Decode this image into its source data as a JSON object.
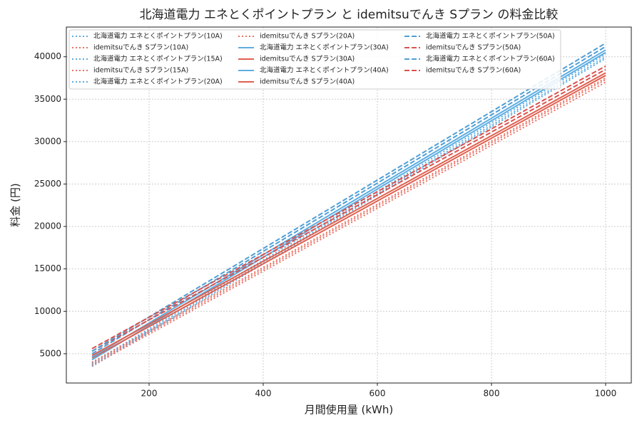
{
  "chart_data": {
    "type": "line",
    "title": "北海道電力 エネとくポイントプラン と idemitsuでんき Sプラン の料金比較",
    "x_label": "月間使用量 (kWh)",
    "y_label": "料金 (円)",
    "x": [
      100,
      1000
    ],
    "xlim": [
      55,
      1045
    ],
    "ylim": [
      1550,
      43500
    ],
    "xticks": [
      200,
      400,
      600,
      800,
      1000
    ],
    "yticks": [
      5000,
      10000,
      15000,
      20000,
      25000,
      30000,
      35000,
      40000
    ],
    "grid": true,
    "legend": "upper left",
    "series": [
      {
        "name": "北海道電力 エネとくポイントプラン(10A)",
        "color": "#5dade2",
        "dash": "dotted",
        "values": [
          3500,
          39800
        ]
      },
      {
        "name": "idemitsuでんき Sプラン(10A)",
        "color": "#ec7063",
        "dash": "dotted",
        "values": [
          3600,
          37000
        ]
      },
      {
        "name": "北海道電力 エネとくポイントプラン(15A)",
        "color": "#5dade2",
        "dash": "dotted",
        "values": [
          3700,
          40000
        ]
      },
      {
        "name": "idemitsuでんき Sプラン(15A)",
        "color": "#ec7063",
        "dash": "dotted",
        "values": [
          3800,
          37300
        ]
      },
      {
        "name": "北海道電力 エネとくポイントプラン(20A)",
        "color": "#5dade2",
        "dash": "dotted",
        "values": [
          3900,
          40300
        ]
      },
      {
        "name": "idemitsuでんき Sプラン(20A)",
        "color": "#ec7063",
        "dash": "dotted",
        "values": [
          4000,
          37500
        ]
      },
      {
        "name": "北海道電力 エネとくポイントプラン(30A)",
        "color": "#5dade2",
        "dash": "solid",
        "values": [
          4300,
          40500
        ]
      },
      {
        "name": "idemitsuでんき Sプラン(30A)",
        "color": "#e0604f",
        "dash": "solid",
        "values": [
          4500,
          37800
        ]
      },
      {
        "name": "北海道電力 エネとくポイントプラン(40A)",
        "color": "#5dade2",
        "dash": "solid",
        "values": [
          4600,
          40800
        ]
      },
      {
        "name": "idemitsuでんき Sプラン(40A)",
        "color": "#e0604f",
        "dash": "solid",
        "values": [
          4800,
          38100
        ]
      },
      {
        "name": "北海道電力 エネとくポイントプラン(50A)",
        "color": "#4f9fd6",
        "dash": "dashed",
        "values": [
          5000,
          41200
        ]
      },
      {
        "name": "idemitsuでんき Sプラン(50A)",
        "color": "#d9534f",
        "dash": "dashed",
        "values": [
          5300,
          38500
        ]
      },
      {
        "name": "北海道電力 エネとくポイントプラン(60A)",
        "color": "#4f9fd6",
        "dash": "dashed",
        "values": [
          5300,
          41600
        ]
      },
      {
        "name": "idemitsuでんき Sプラン(60A)",
        "color": "#d9534f",
        "dash": "dashed",
        "values": [
          5600,
          38900
        ]
      }
    ]
  }
}
